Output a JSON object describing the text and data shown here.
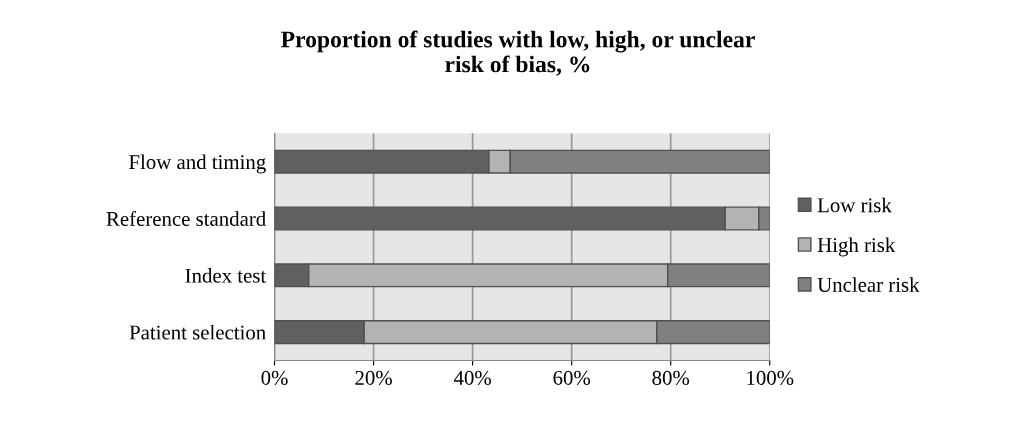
{
  "chart_data": {
    "type": "bar",
    "orientation": "horizontal",
    "stacked": true,
    "title": "Proportion of studies with low, high, or unclear\nrisk of bias, %",
    "categories": [
      "Flow and timing",
      "Reference standard",
      "Index test",
      "Patient selection"
    ],
    "series": [
      {
        "name": "Low risk",
        "color": "#606060",
        "values": [
          43.3,
          91.0,
          6.9,
          18.1
        ]
      },
      {
        "name": "High risk",
        "color": "#b3b3b3",
        "values": [
          4.3,
          6.8,
          72.5,
          59.1
        ]
      },
      {
        "name": "Unclear risk",
        "color": "#808080",
        "values": [
          52.4,
          2.2,
          20.6,
          22.8
        ]
      }
    ],
    "xlim": [
      0,
      100
    ],
    "xticks": [
      {
        "value": 0,
        "label": "0%"
      },
      {
        "value": 20,
        "label": "20%"
      },
      {
        "value": 40,
        "label": "40%"
      },
      {
        "value": 60,
        "label": "60%"
      },
      {
        "value": 80,
        "label": "80%"
      },
      {
        "value": 100,
        "label": "100%"
      }
    ],
    "grid": "x",
    "legend": "right"
  }
}
